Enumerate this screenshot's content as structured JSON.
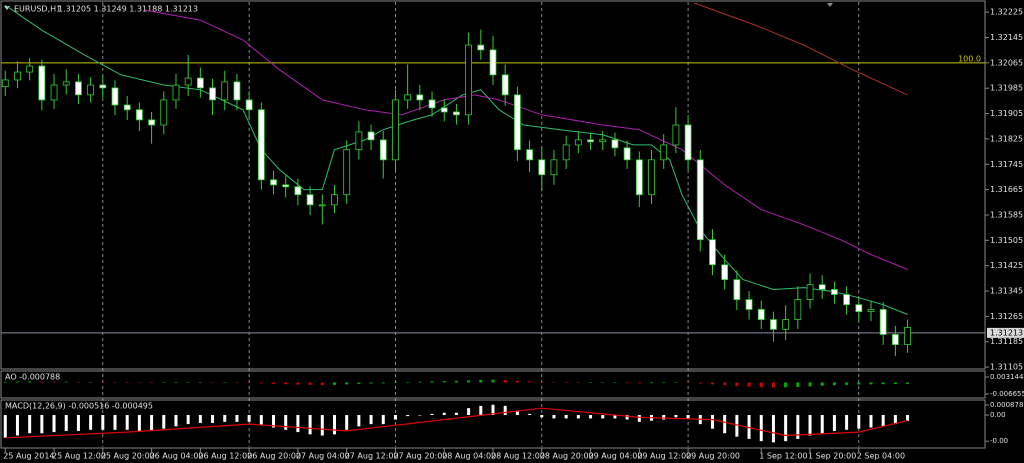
{
  "chart_data": [
    {
      "type": "candlestick",
      "title": "EURUSD,H1",
      "subtitle": "1.31205 1.31249 1.31188 1.31213",
      "x": [
        0,
        2,
        4,
        6,
        8,
        10,
        12,
        14,
        16,
        18,
        20,
        22,
        24,
        26,
        28,
        30,
        32,
        34,
        36,
        38,
        40,
        42,
        44,
        46,
        48,
        50,
        52,
        54,
        56,
        58,
        60,
        62,
        64,
        66,
        68,
        70,
        72,
        74,
        76,
        78,
        80,
        82,
        84,
        86,
        88,
        90,
        92,
        94,
        96,
        98,
        100,
        102,
        104,
        106,
        108,
        110,
        112,
        114,
        116,
        118,
        120,
        122,
        124,
        126,
        128,
        130,
        132,
        134,
        136,
        138,
        140,
        142,
        144,
        146,
        148
      ],
      "open": [
        1.3199,
        1.32011,
        1.32036,
        1.32055,
        1.31948,
        1.31995,
        1.32005,
        1.31964,
        1.31995,
        1.31986,
        1.31932,
        1.31917,
        1.31885,
        1.31869,
        1.31948,
        1.31995,
        1.32017,
        1.31986,
        1.31948,
        1.32005,
        1.31948,
        1.31917,
        1.31696,
        1.3168,
        1.31674,
        1.31649,
        1.31617,
        1.31617,
        1.31649,
        1.31791,
        1.31847,
        1.31822,
        1.31759,
        1.31948,
        1.31964,
        1.31948,
        1.31923,
        1.3191,
        1.31901,
        1.32121,
        1.32106,
        1.32027,
        1.31964,
        1.31791,
        1.31759,
        1.31712,
        1.31759,
        1.31806,
        1.31822,
        1.31816,
        1.31822,
        1.31797,
        1.31759,
        1.31649,
        1.31759,
        1.31806,
        1.31869,
        1.31759,
        1.31507,
        1.31428,
        1.31381,
        1.31318,
        1.31287,
        1.31255,
        1.31224,
        1.31255,
        1.31318,
        1.31365,
        1.3135,
        1.31334,
        1.31302,
        1.3128,
        1.31287,
        1.31208,
        1.31176
      ],
      "high": [
        1.3204,
        1.3207,
        1.3208,
        1.32075,
        1.3203,
        1.32045,
        1.3203,
        1.3202,
        1.32025,
        1.3201,
        1.3196,
        1.3194,
        1.3191,
        1.31975,
        1.3203,
        1.3209,
        1.3205,
        1.32015,
        1.3204,
        1.3203,
        1.31975,
        1.3194,
        1.31725,
        1.3171,
        1.317,
        1.31675,
        1.3165,
        1.3168,
        1.3182,
        1.3188,
        1.3187,
        1.3185,
        1.3198,
        1.3206,
        1.31995,
        1.31975,
        1.3195,
        1.31935,
        1.3216,
        1.3217,
        1.3215,
        1.3206,
        1.3199,
        1.3182,
        1.318,
        1.3179,
        1.31835,
        1.3185,
        1.31845,
        1.3185,
        1.31845,
        1.3182,
        1.31785,
        1.3179,
        1.3184,
        1.31925,
        1.319,
        1.3179,
        1.3154,
        1.3146,
        1.3141,
        1.31345,
        1.31315,
        1.3128,
        1.313,
        1.3136,
        1.314,
        1.31395,
        1.31375,
        1.3136,
        1.31325,
        1.31315,
        1.3131,
        1.31235,
        1.31255
      ],
      "low": [
        1.3196,
        1.31985,
        1.3201,
        1.31915,
        1.3192,
        1.31965,
        1.31935,
        1.3194,
        1.31955,
        1.319,
        1.31885,
        1.3185,
        1.3181,
        1.3184,
        1.3192,
        1.3196,
        1.31955,
        1.319,
        1.31915,
        1.31915,
        1.31885,
        1.31665,
        1.3165,
        1.3164,
        1.31615,
        1.31585,
        1.31555,
        1.3159,
        1.3162,
        1.3176,
        1.3179,
        1.317,
        1.31725,
        1.3192,
        1.31915,
        1.31895,
        1.3188,
        1.3187,
        1.3187,
        1.32075,
        1.31995,
        1.3193,
        1.31755,
        1.3172,
        1.3166,
        1.3168,
        1.3173,
        1.3178,
        1.3179,
        1.3179,
        1.3177,
        1.3173,
        1.3161,
        1.3162,
        1.3173,
        1.3178,
        1.31725,
        1.3147,
        1.31395,
        1.3135,
        1.31285,
        1.31255,
        1.31225,
        1.31185,
        1.3119,
        1.31225,
        1.3129,
        1.3132,
        1.31305,
        1.3127,
        1.3125,
        1.3125,
        1.31175,
        1.3114,
        1.3115
      ],
      "close": [
        1.32011,
        1.32036,
        1.32055,
        1.31948,
        1.31995,
        1.32005,
        1.31964,
        1.31995,
        1.31986,
        1.31932,
        1.31917,
        1.31885,
        1.31869,
        1.31948,
        1.31995,
        1.32017,
        1.31986,
        1.31948,
        1.32005,
        1.31948,
        1.31917,
        1.31696,
        1.3168,
        1.31674,
        1.31649,
        1.31617,
        1.31617,
        1.31649,
        1.31791,
        1.31847,
        1.31822,
        1.31759,
        1.31948,
        1.31964,
        1.31948,
        1.31923,
        1.3191,
        1.31901,
        1.32121,
        1.32106,
        1.32027,
        1.31964,
        1.31791,
        1.31759,
        1.31712,
        1.31759,
        1.31806,
        1.31822,
        1.31816,
        1.31822,
        1.31797,
        1.31759,
        1.31649,
        1.31759,
        1.31806,
        1.31869,
        1.31759,
        1.31507,
        1.31428,
        1.31381,
        1.31318,
        1.31287,
        1.31255,
        1.31224,
        1.31255,
        1.31318,
        1.31365,
        1.3135,
        1.31334,
        1.31302,
        1.3128,
        1.31287,
        1.31208,
        1.31176,
        1.3123
      ],
      "up_fill": "#000000",
      "down_fill": "#ffffff",
      "candle_color": "#2fd02f",
      "overlays": [
        {
          "color": "#2fbf6f",
          "x": [
            0,
            6,
            13,
            19,
            26,
            32,
            39,
            42,
            45,
            49,
            52,
            54,
            59,
            62,
            67,
            70,
            75,
            78,
            81,
            85,
            91,
            98,
            103,
            106,
            109,
            111,
            114,
            118,
            121,
            126,
            131,
            136,
            140,
            144,
            148
          ],
          "values": [
            1.32247,
            1.32168,
            1.3209,
            1.32027,
            1.31995,
            1.3198,
            1.31917,
            1.31791,
            1.31728,
            1.31665,
            1.31665,
            1.31791,
            1.31822,
            1.31854,
            1.31885,
            1.31901,
            1.31964,
            1.3198,
            1.31917,
            1.31869,
            1.31854,
            1.31838,
            1.31806,
            1.31806,
            1.31759,
            1.31649,
            1.31538,
            1.31444,
            1.31381,
            1.3135,
            1.31356,
            1.31343,
            1.31324,
            1.31302,
            1.31271
          ]
        },
        {
          "color": "#b020b0",
          "x": [
            23,
            32,
            39,
            45,
            52,
            59,
            65,
            72,
            77,
            81,
            88,
            98,
            104,
            111,
            118,
            124,
            131,
            137,
            142,
            148
          ],
          "values": [
            1.32231,
            1.322,
            1.32137,
            1.32043,
            1.31948,
            1.31917,
            1.31901,
            1.31948,
            1.31964,
            1.31948,
            1.31901,
            1.31869,
            1.31854,
            1.31791,
            1.3168,
            1.31602,
            1.31554,
            1.31507,
            1.3146,
            1.31413
          ]
        },
        {
          "color": "#a83030",
          "x": [
            113,
            123,
            131,
            139,
            148
          ],
          "values": [
            1.32254,
            1.32184,
            1.32121,
            1.32043,
            1.31964
          ]
        }
      ],
      "hline": {
        "value": 1.32065,
        "label": "100.0",
        "color": "#c8c800"
      },
      "last_price": 1.31213,
      "xlim": [
        -0.7,
        160.7
      ],
      "xticks": [
        {
          "value": 0,
          "label": "25 Aug 2014"
        },
        {
          "value": 8,
          "label": "25 Aug 12:00"
        },
        {
          "value": 16,
          "label": "25 Aug 20:00"
        },
        {
          "value": 24,
          "label": "26 Aug 04:00"
        },
        {
          "value": 32,
          "label": "26 Aug 12:00"
        },
        {
          "value": 40,
          "label": "26 Aug 20:00"
        },
        {
          "value": 48,
          "label": "27 Aug 04:00"
        },
        {
          "value": 56,
          "label": "27 Aug 12:00"
        },
        {
          "value": 64,
          "label": "27 Aug 20:00"
        },
        {
          "value": 72,
          "label": "28 Aug 04:00"
        },
        {
          "value": 80,
          "label": "28 Aug 12:00"
        },
        {
          "value": 88,
          "label": "28 Aug 20:00"
        },
        {
          "value": 96,
          "label": "29 Aug 04:00"
        },
        {
          "value": 104,
          "label": "29 Aug 12:00"
        },
        {
          "value": 112,
          "label": "29 Aug 20:00"
        },
        {
          "value": 124,
          "label": "1 Sep 12:00"
        },
        {
          "value": 132,
          "label": "1 Sep 20:00"
        },
        {
          "value": 140,
          "label": "2 Sep 04:00"
        }
      ],
      "ylim": [
        1.31099,
        1.32257
      ],
      "yticks": [
        1.32225,
        1.32145,
        1.32065,
        1.31985,
        1.31905,
        1.31825,
        1.31745,
        1.31665,
        1.31585,
        1.31505,
        1.31425,
        1.31345,
        1.31265,
        1.31185,
        1.31105
      ]
    },
    {
      "type": "ao",
      "title": "AO -0.000788",
      "values": [
        0.0004,
        0.0005,
        0.0006,
        0.0005,
        0.0004,
        0.0004,
        0.0003,
        0.0003,
        0.0002,
        0.0001,
        0.0,
        -0.0001,
        -0.0002,
        -0.0001,
        0.0,
        0.0001,
        0.0002,
        0.0001,
        0.0001,
        0.0,
        -0.0001,
        -0.0005,
        -0.0008,
        -0.001,
        -0.0012,
        -0.0014,
        -0.0015,
        -0.0014,
        -0.0011,
        -0.0008,
        -0.0006,
        -0.0005,
        -0.0002,
        0.0002,
        0.0005,
        0.0007,
        0.0008,
        0.0009,
        0.0012,
        0.0015,
        0.0016,
        0.0014,
        0.001,
        0.0006,
        0.0002,
        -0.0001,
        -0.0002,
        -0.0003,
        -0.0003,
        -0.0002,
        -0.0002,
        -0.0003,
        -0.0005,
        -0.0004,
        -0.0002,
        0.0,
        -0.0001,
        -0.0006,
        -0.0011,
        -0.0016,
        -0.002,
        -0.0024,
        -0.0027,
        -0.0029,
        -0.0028,
        -0.0026,
        -0.0022,
        -0.0019,
        -0.0016,
        -0.0014,
        -0.0012,
        -0.0011,
        -0.001,
        -0.0009,
        -0.000788
      ],
      "up_color": "#00b000",
      "down_color": "#d00000",
      "ylim": [
        -0.00838,
        0.00603
      ],
      "yticks": [
        0.003144,
        -0.006655
      ]
    },
    {
      "type": "macd",
      "title": "MACD(12,26,9) -0.000516 -0.000495",
      "values": [
        -0.002,
        -0.0018,
        -0.0016,
        -0.0016,
        -0.0015,
        -0.0014,
        -0.0014,
        -0.0013,
        -0.0013,
        -0.0013,
        -0.0013,
        -0.0014,
        -0.0014,
        -0.0012,
        -0.001,
        -0.0008,
        -0.0007,
        -0.0007,
        -0.0006,
        -0.0006,
        -0.0006,
        -0.0009,
        -0.0011,
        -0.0013,
        -0.0015,
        -0.0017,
        -0.0018,
        -0.0017,
        -0.0013,
        -0.001,
        -0.0008,
        -0.0008,
        -0.0004,
        -0.0001,
        0.0,
        0.0001,
        0.0002,
        0.0002,
        0.0006,
        0.0008,
        0.0009,
        0.0008,
        0.0004,
        0.0001,
        -0.0002,
        -0.0003,
        -0.0003,
        -0.0003,
        -0.0003,
        -0.0003,
        -0.0003,
        -0.0004,
        -0.0006,
        -0.0005,
        -0.0004,
        -0.0002,
        -0.0003,
        -0.0008,
        -0.0012,
        -0.0016,
        -0.0019,
        -0.0021,
        -0.0023,
        -0.0024,
        -0.0023,
        -0.0021,
        -0.0018,
        -0.0016,
        -0.0014,
        -0.0013,
        -0.0012,
        -0.0011,
        -0.001,
        -0.0008,
        -0.000516
      ],
      "color": "#ffffff",
      "signal": {
        "color": "#e00000",
        "x": [
          0,
          10,
          20,
          28,
          36,
          44,
          52,
          58,
          64,
          70,
          74
        ],
        "values": [
          -0.002,
          -0.0015,
          -0.0008,
          -0.0014,
          -0.0004,
          0.0006,
          -0.0002,
          -0.0004,
          -0.0018,
          -0.0015,
          -0.000495
        ]
      },
      "ylim": [
        -0.00281,
        0.00123
      ],
      "yticks": [
        0.000878,
        {
          "value": 0,
          "label": "0.00"
        },
        {
          "value": -0.0023,
          "label": "-0.00"
        }
      ]
    }
  ]
}
